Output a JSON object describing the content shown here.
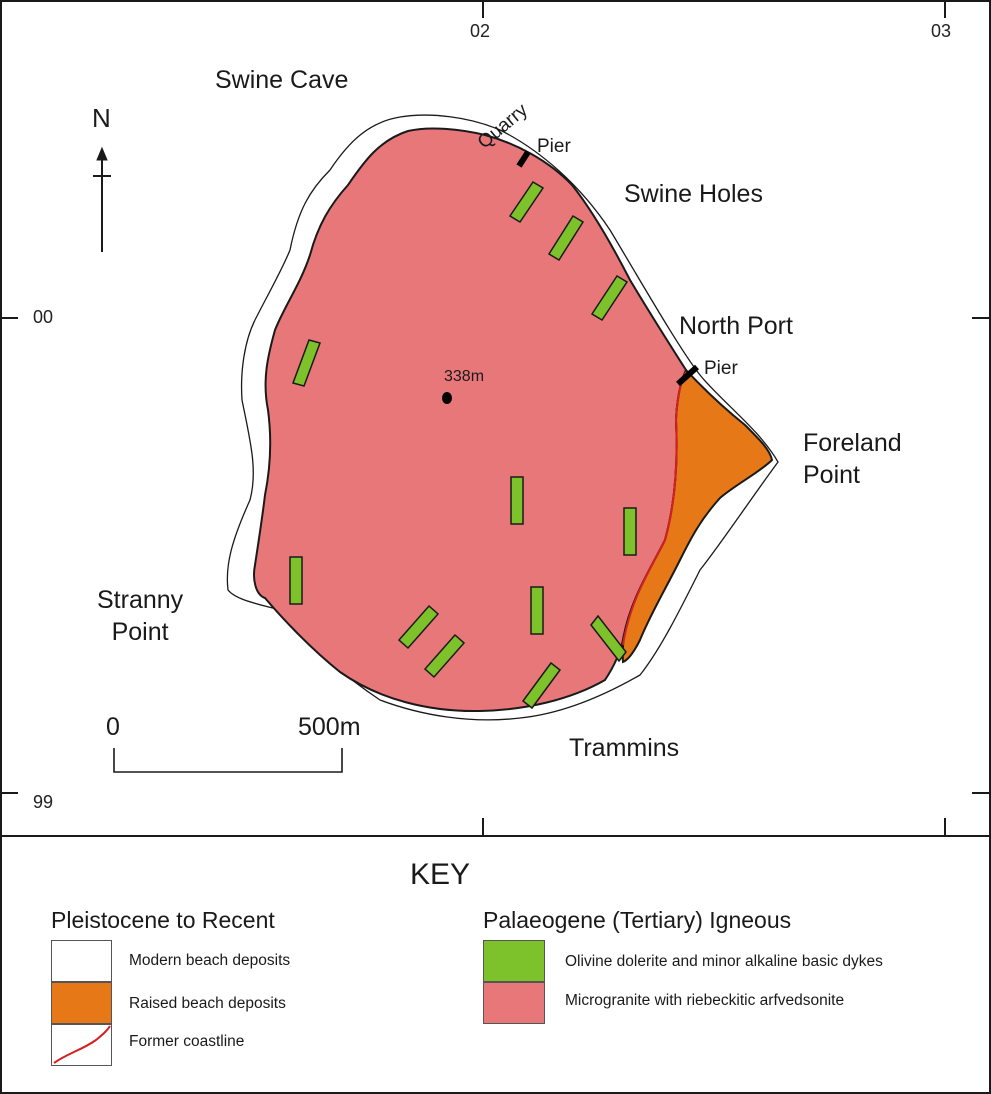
{
  "grid": {
    "x_labels": [
      "02",
      "03"
    ],
    "y_labels": [
      "00",
      "99"
    ]
  },
  "north_label": "N",
  "places": {
    "swine_cave": "Swine Cave",
    "quarry": "Quarry",
    "pier_north": "Pier",
    "swine_holes": "Swine Holes",
    "north_port": "North Port",
    "pier_east": "Pier",
    "foreland_point": "Foreland\nPoint",
    "summit": "338m",
    "stranny_point": "Stranny\nPoint",
    "trammins": "Trammins"
  },
  "scale": {
    "start": "0",
    "end": "500m"
  },
  "key": {
    "title": "KEY",
    "groups": [
      {
        "heading": "Pleistocene to Recent",
        "items": [
          {
            "label": "Modern beach deposits",
            "color": "#ffffff"
          },
          {
            "label": "Raised beach deposits",
            "color": "#e67817"
          },
          {
            "label": "Former coastline",
            "color": "#d42020"
          }
        ]
      },
      {
        "heading": "Palaeogene (Tertiary) Igneous",
        "items": [
          {
            "label": "Olivine dolerite and minor alkaline basic dykes",
            "color": "#7dc22a"
          },
          {
            "label": "Microgranite with riebeckitic arfvedsonite",
            "color": "#e8777a"
          }
        ]
      }
    ]
  },
  "colors": {
    "granite": "#e8777a",
    "dyke": "#7dc22a",
    "raised_beach": "#e67817",
    "former_coastline": "#d42020",
    "outline": "#1a1a1a"
  }
}
